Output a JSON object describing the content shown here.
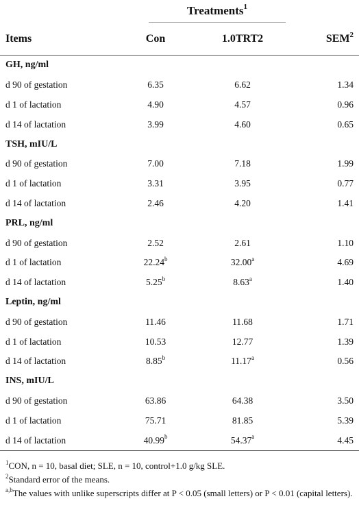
{
  "header": {
    "treatments_label": "Treatments",
    "treatments_sup": "1",
    "items_label": "Items",
    "con_label": "Con",
    "trt_label": "1.0TRT2",
    "sem_label": "SEM",
    "sem_sup": "2"
  },
  "groups": [
    {
      "title": "GH, ng/ml",
      "rows": [
        {
          "item": "d 90 of gestation",
          "con": "6.35",
          "con_sup": "",
          "trt": "6.62",
          "trt_sup": "",
          "sem": "1.34"
        },
        {
          "item": "d 1 of lactation",
          "con": "4.90",
          "con_sup": "",
          "trt": "4.57",
          "trt_sup": "",
          "sem": "0.96"
        },
        {
          "item": "d 14 of lactation",
          "con": "3.99",
          "con_sup": "",
          "trt": "4.60",
          "trt_sup": "",
          "sem": "0.65"
        }
      ]
    },
    {
      "title": "TSH, mIU/L",
      "rows": [
        {
          "item": "d 90 of gestation",
          "con": "7.00",
          "con_sup": "",
          "trt": "7.18",
          "trt_sup": "",
          "sem": "1.99"
        },
        {
          "item": "d 1 of lactation",
          "con": "3.31",
          "con_sup": "",
          "trt": "3.95",
          "trt_sup": "",
          "sem": "0.77"
        },
        {
          "item": "d 14 of lactation",
          "con": "2.46",
          "con_sup": "",
          "trt": "4.20",
          "trt_sup": "",
          "sem": "1.41"
        }
      ]
    },
    {
      "title": "PRL, ng/ml",
      "rows": [
        {
          "item": "d 90 of gestation",
          "con": "2.52",
          "con_sup": "",
          "trt": "2.61",
          "trt_sup": "",
          "sem": "1.10"
        },
        {
          "item": "d 1 of lactation",
          "con": "22.24",
          "con_sup": "b",
          "trt": "32.00",
          "trt_sup": "a",
          "sem": "4.69"
        },
        {
          "item": "d 14 of lactation",
          "con": "5.25",
          "con_sup": "b",
          "trt": "8.63",
          "trt_sup": "a",
          "sem": "1.40"
        }
      ]
    },
    {
      "title": "Leptin, ng/ml",
      "rows": [
        {
          "item": "d 90 of gestation",
          "con": "11.46",
          "con_sup": "",
          "trt": "11.68",
          "trt_sup": "",
          "sem": "1.71"
        },
        {
          "item": "d 1 of lactation",
          "con": "10.53",
          "con_sup": "",
          "trt": "12.77",
          "trt_sup": "",
          "sem": "1.39"
        },
        {
          "item": "d 14 of lactation",
          "con": "8.85",
          "con_sup": "b",
          "trt": "11.17",
          "trt_sup": "a",
          "sem": "0.56"
        }
      ]
    },
    {
      "title": "INS, mIU/L",
      "rows": [
        {
          "item": "d 90 of gestation",
          "con": "63.86",
          "con_sup": "",
          "trt": "64.38",
          "trt_sup": "",
          "sem": "3.50"
        },
        {
          "item": "d 1 of lactation",
          "con": "75.71",
          "con_sup": "",
          "trt": "81.85",
          "trt_sup": "",
          "sem": "5.39"
        },
        {
          "item": "d 14 of lactation",
          "con": "40.99",
          "con_sup": "b",
          "trt": "54.37",
          "trt_sup": "a",
          "sem": "4.45"
        }
      ]
    }
  ],
  "notes": [
    {
      "sup": "1",
      "text": "CON, n = 10, basal diet; SLE, n = 10, control+1.0 g/kg SLE."
    },
    {
      "sup": "2",
      "text": "Standard error of the means."
    },
    {
      "sup": "a,b",
      "text": "The values with unlike superscripts differ at P < 0.05 (small letters) or P < 0.01 (capital letters)."
    }
  ]
}
